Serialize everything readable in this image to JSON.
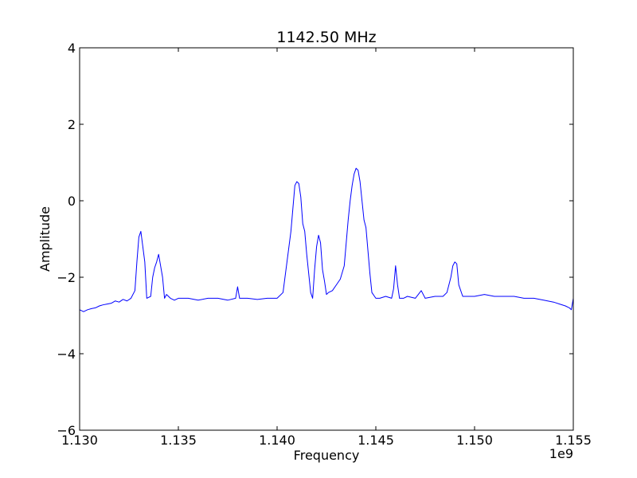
{
  "chart_data": {
    "type": "line",
    "title": "1142.50 MHz",
    "xlabel": "Frequency",
    "ylabel": "Amplitude",
    "x_offset_label": "1e9",
    "xlim": [
      1.13,
      1.155
    ],
    "ylim": [
      -6,
      4
    ],
    "x_tick_labels": [
      "1.130",
      "1.135",
      "1.140",
      "1.145",
      "1.150",
      "1.155"
    ],
    "y_tick_labels": [
      "4",
      "2",
      "0",
      "−2",
      "−4",
      "−6"
    ],
    "grid": false,
    "legend": "none",
    "line_color": "#0000ff",
    "series": [
      {
        "x": [
          1.13,
          1.1302,
          1.1304,
          1.1306,
          1.1308,
          1.131,
          1.1312,
          1.1314,
          1.1316,
          1.1318,
          1.132,
          1.1322,
          1.1324,
          1.1326,
          1.1328,
          1.1329,
          1.133,
          1.1331,
          1.1332,
          1.1333,
          1.1334,
          1.1336,
          1.1337,
          1.1338,
          1.1339,
          1.134,
          1.1341,
          1.1342,
          1.1343,
          1.1344,
          1.1346,
          1.1348,
          1.135,
          1.1355,
          1.136,
          1.1365,
          1.137,
          1.1375,
          1.1379,
          1.138,
          1.1381,
          1.1385,
          1.139,
          1.1395,
          1.14,
          1.1403,
          1.1405,
          1.1407,
          1.1408,
          1.1409,
          1.141,
          1.1411,
          1.1412,
          1.1413,
          1.1414,
          1.1415,
          1.1416,
          1.1417,
          1.1418,
          1.1419,
          1.142,
          1.1421,
          1.1422,
          1.1423,
          1.1424,
          1.1425,
          1.1426,
          1.1428,
          1.143,
          1.1432,
          1.1434,
          1.1436,
          1.1437,
          1.1438,
          1.1439,
          1.144,
          1.1441,
          1.1442,
          1.1443,
          1.1444,
          1.1445,
          1.1446,
          1.1447,
          1.1448,
          1.145,
          1.1452,
          1.1455,
          1.1458,
          1.1459,
          1.146,
          1.1461,
          1.1462,
          1.1464,
          1.1466,
          1.147,
          1.1473,
          1.1475,
          1.148,
          1.1484,
          1.1486,
          1.1488,
          1.1489,
          1.149,
          1.1491,
          1.1492,
          1.1494,
          1.15,
          1.1505,
          1.151,
          1.1515,
          1.152,
          1.1525,
          1.153,
          1.1535,
          1.154,
          1.1543,
          1.1546,
          1.1548,
          1.1549,
          1.155
        ],
        "y": [
          -2.85,
          -2.9,
          -2.85,
          -2.82,
          -2.8,
          -2.75,
          -2.72,
          -2.7,
          -2.68,
          -2.62,
          -2.65,
          -2.58,
          -2.62,
          -2.55,
          -2.35,
          -1.6,
          -0.95,
          -0.8,
          -1.2,
          -1.6,
          -2.55,
          -2.5,
          -2.0,
          -1.75,
          -1.6,
          -1.4,
          -1.7,
          -2.0,
          -2.55,
          -2.45,
          -2.55,
          -2.6,
          -2.55,
          -2.55,
          -2.6,
          -2.55,
          -2.55,
          -2.6,
          -2.55,
          -2.25,
          -2.55,
          -2.55,
          -2.58,
          -2.55,
          -2.55,
          -2.4,
          -1.6,
          -0.8,
          -0.2,
          0.4,
          0.5,
          0.45,
          0.1,
          -0.6,
          -0.8,
          -1.4,
          -1.9,
          -2.4,
          -2.55,
          -1.8,
          -1.2,
          -0.9,
          -1.1,
          -1.8,
          -2.1,
          -2.45,
          -2.4,
          -2.35,
          -2.2,
          -2.05,
          -1.7,
          -0.5,
          0.0,
          0.4,
          0.7,
          0.85,
          0.8,
          0.5,
          0.0,
          -0.5,
          -0.7,
          -1.3,
          -1.9,
          -2.4,
          -2.55,
          -2.55,
          -2.5,
          -2.55,
          -2.3,
          -1.7,
          -2.2,
          -2.55,
          -2.55,
          -2.5,
          -2.55,
          -2.35,
          -2.55,
          -2.5,
          -2.5,
          -2.4,
          -2.0,
          -1.7,
          -1.6,
          -1.65,
          -2.2,
          -2.5,
          -2.5,
          -2.45,
          -2.5,
          -2.5,
          -2.5,
          -2.55,
          -2.55,
          -2.6,
          -2.65,
          -2.7,
          -2.75,
          -2.8,
          -2.85,
          -2.55
        ]
      }
    ]
  }
}
